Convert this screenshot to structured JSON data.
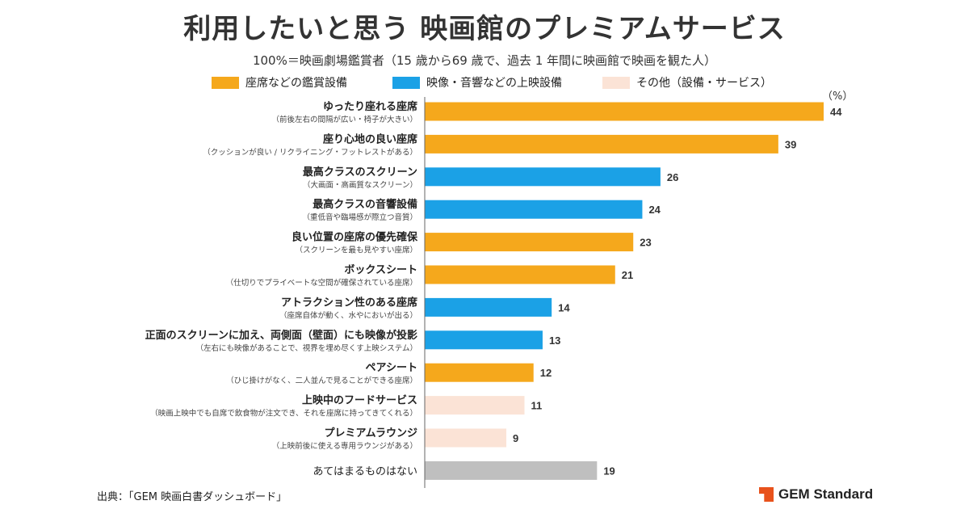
{
  "title": "利用したいと思う 映画館のプレミアムサービス",
  "subtitle": "100%＝映画劇場鑑賞者（15 歳から69 歳で、過去 1 年間に映画館で映画を観た人）",
  "legend": [
    {
      "label": "座席などの鑑賞設備",
      "color": "#f5a81c"
    },
    {
      "label": "映像・音響などの上映設備",
      "color": "#1ba1e6"
    },
    {
      "label": "その他（設備・サービス）",
      "color": "#fbe3d6"
    }
  ],
  "unit_label": "（%）",
  "source": "出典：「GEM 映画白書ダッシュボード」",
  "logo": "GEM Standard",
  "colors": {
    "gray": "#bfbfbf",
    "axis": "#666666"
  },
  "chart_data": {
    "type": "bar",
    "orientation": "horizontal",
    "xlim": [
      0,
      44
    ],
    "categories": [
      {
        "label": "ゆったり座れる座席",
        "sublabel": "（前後左右の間隔が広い・椅子が大きい）",
        "value": 44,
        "group": 0
      },
      {
        "label": "座り心地の良い座席",
        "sublabel": "（クッションが良い / リクライニング・フットレストがある）",
        "value": 39,
        "group": 0
      },
      {
        "label": "最高クラスのスクリーン",
        "sublabel": "（大画面・高画質なスクリーン）",
        "value": 26,
        "group": 1
      },
      {
        "label": "最高クラスの音響設備",
        "sublabel": "（重低音や臨場感が際立つ音質）",
        "value": 24,
        "group": 1
      },
      {
        "label": "良い位置の座席の優先確保",
        "sublabel": "（スクリーンを最も見やすい座席）",
        "value": 23,
        "group": 0
      },
      {
        "label": "ボックスシート",
        "sublabel": "（仕切りでプライベートな空間が確保されている座席）",
        "value": 21,
        "group": 0
      },
      {
        "label": "アトラクション性のある座席",
        "sublabel": "（座席自体が動く、水やにおいが出る）",
        "value": 14,
        "group": 1
      },
      {
        "label": "正面のスクリーンに加え、両側面（壁面）にも映像が投影",
        "sublabel": "（左右にも映像があることで、視界を埋め尽くす上映システム）",
        "value": 13,
        "group": 1
      },
      {
        "label": "ペアシート",
        "sublabel": "（ひじ掛けがなく、二人並んで見ることができる座席）",
        "value": 12,
        "group": 0
      },
      {
        "label": "上映中のフードサービス",
        "sublabel": "（映画上映中でも自席で飲食物が注文でき、それを座席に持ってきてくれる）",
        "value": 11,
        "group": 2
      },
      {
        "label": "プレミアムラウンジ",
        "sublabel": "（上映前後に使える専用ラウンジがある）",
        "value": 9,
        "group": 2
      },
      {
        "label": "あてはまるものはない",
        "sublabel": "",
        "value": 19,
        "group": 3
      }
    ]
  }
}
